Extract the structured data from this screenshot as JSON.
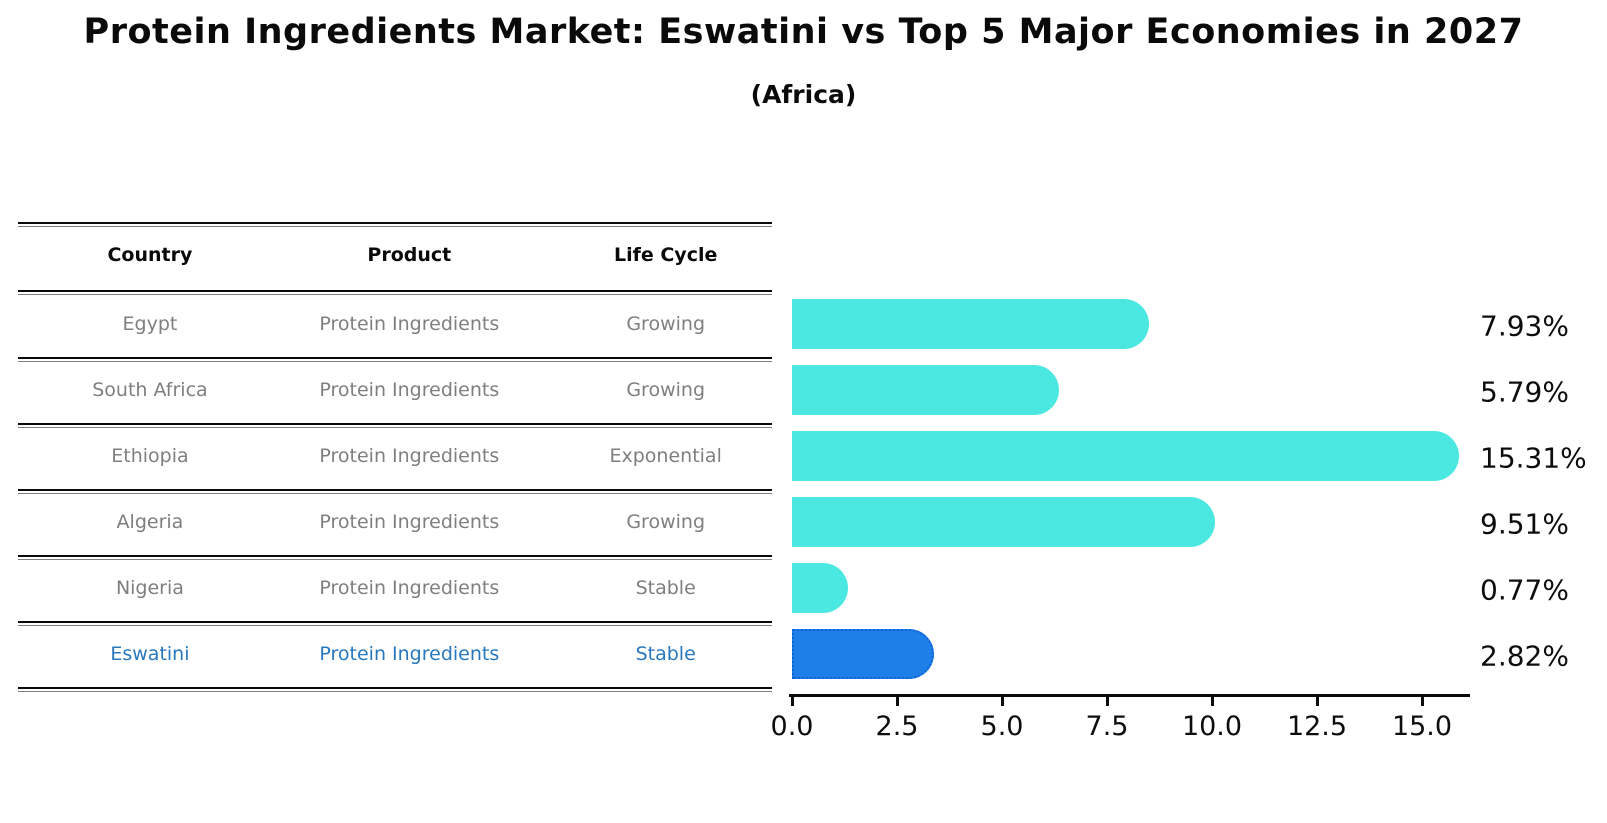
{
  "title": "Protein Ingredients Market: Eswatini vs Top 5 Major Economies in 2027",
  "subtitle": "(Africa)",
  "table": {
    "headers": [
      "Country",
      "Product",
      "Life Cycle"
    ],
    "rows": [
      {
        "country": "Egypt",
        "product": "Protein Ingredients",
        "life_cycle": "Growing",
        "highlight": false
      },
      {
        "country": "South Africa",
        "product": "Protein Ingredients",
        "life_cycle": "Growing",
        "highlight": false
      },
      {
        "country": "Ethiopia",
        "product": "Protein Ingredients",
        "life_cycle": "Exponential",
        "highlight": false
      },
      {
        "country": "Algeria",
        "product": "Protein Ingredients",
        "life_cycle": "Growing",
        "highlight": false
      },
      {
        "country": "Nigeria",
        "product": "Protein Ingredients",
        "life_cycle": "Stable",
        "highlight": false
      },
      {
        "country": "Eswatini",
        "product": "Protein Ingredients",
        "life_cycle": "Stable",
        "highlight": true
      }
    ]
  },
  "chart_data": {
    "type": "bar",
    "orientation": "horizontal",
    "title": "Protein Ingredients Market: Eswatini vs Top 5 Major Economies in 2027 (Africa)",
    "categories": [
      "Egypt",
      "South Africa",
      "Ethiopia",
      "Algeria",
      "Nigeria",
      "Eswatini"
    ],
    "values": [
      7.93,
      5.79,
      15.31,
      9.51,
      0.77,
      2.82
    ],
    "value_labels": [
      "7.93%",
      "5.79%",
      "15.31%",
      "9.51%",
      "0.77%",
      "2.82%"
    ],
    "unit": "%",
    "highlight_index": 5,
    "x_tick_labels": [
      "0.0",
      "2.5",
      "5.0",
      "7.5",
      "10.0",
      "12.5",
      "15.0"
    ],
    "xlim": [
      0,
      16.1
    ],
    "grid": false,
    "legend": false,
    "bar_color": "#4BE7E1",
    "highlight_bar_color": "#1E7FE8",
    "highlight_bar_border_color": "#0E62D8"
  },
  "colors": {
    "background": "#ffffff",
    "title_text": "#0a0a0a",
    "table_header_text": "#0a0a0a",
    "table_body_text": "#7f7f7f",
    "table_highlight_text": "#2878be",
    "rule_line": "#0b0b0b",
    "axis": "#0a0a0a",
    "value_label_text": "#0d0d0d"
  }
}
